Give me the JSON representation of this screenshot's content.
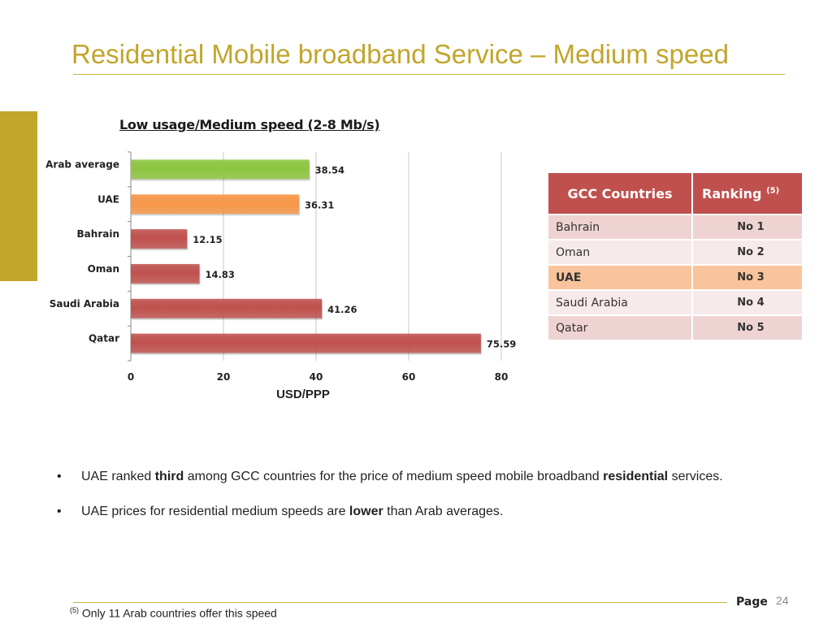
{
  "slide": {
    "title": "Residential Mobile broadband Service – Medium speed",
    "page_label": "Page",
    "page_number": "24",
    "footnote_mark": "(5)",
    "footnote_text": "Only 11 Arab countries offer this speed",
    "accent_color": "#C2A52B"
  },
  "chart_data": {
    "type": "bar",
    "orientation": "horizontal",
    "title": "Low usage/Medium speed (2-8 Mb/s)",
    "xlabel": "USD/PPP",
    "ylabel": "",
    "categories": [
      "Arab average",
      "UAE",
      "Bahrain",
      "Oman",
      "Saudi Arabia",
      "Qatar"
    ],
    "values": [
      38.54,
      36.31,
      12.15,
      14.83,
      41.26,
      75.59
    ],
    "value_labels": [
      "38.54",
      "36.31",
      "12.15",
      "14.83",
      "41.26",
      "75.59"
    ],
    "colors": [
      "#8DC63F",
      "#F79646",
      "#C0504D",
      "#C0504D",
      "#C0504D",
      "#C0504D"
    ],
    "xlim": [
      0,
      80
    ],
    "xticks": [
      0,
      20,
      40,
      60,
      80
    ],
    "grid": true,
    "legend": "none"
  },
  "gcc_table": {
    "headers": [
      "GCC Countries",
      "Ranking"
    ],
    "ranking_sup": "(5)",
    "rows": [
      {
        "country": "Bahrain",
        "rank": "No 1"
      },
      {
        "country": "Oman",
        "rank": "No 2"
      },
      {
        "country": "UAE",
        "rank": "No 3"
      },
      {
        "country": "Saudi Arabia",
        "rank": "No 4"
      },
      {
        "country": "Qatar",
        "rank": "No 5"
      }
    ],
    "header_color": "#C0504D",
    "highlight_color": "#F9C49B"
  },
  "bullets": [
    {
      "dot": "•",
      "t1": "UAE ranked ",
      "b1": "third",
      "t2": " among GCC countries for the price of medium speed mobile broadband ",
      "b2": "residential",
      "t3": " services."
    },
    {
      "dot": "•",
      "t1": "UAE prices for residential medium speeds are ",
      "b1": "lower",
      "t2": " than Arab averages.",
      "b2": "",
      "t3": ""
    }
  ]
}
